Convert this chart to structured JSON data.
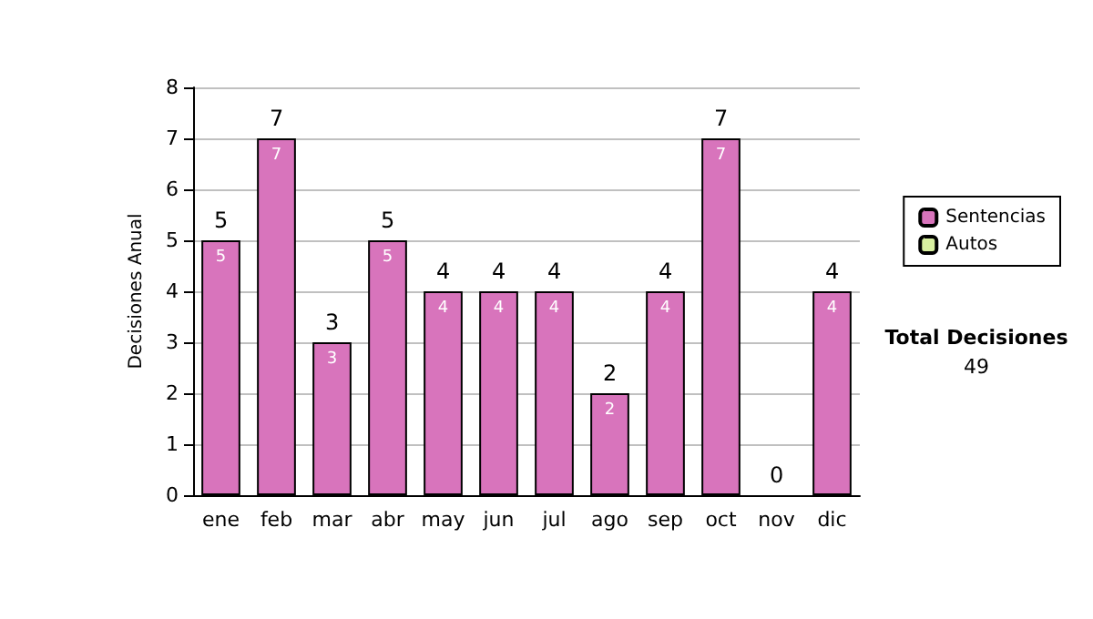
{
  "chart_data": {
    "type": "bar",
    "ylabel": "Decisiones Anual",
    "categories": [
      "ene",
      "feb",
      "mar",
      "abr",
      "may",
      "jun",
      "jul",
      "ago",
      "sep",
      "oct",
      "nov",
      "dic"
    ],
    "stacked": true,
    "series": [
      {
        "name": "Sentencias",
        "color": "#d874bc",
        "values": [
          5,
          7,
          3,
          5,
          4,
          4,
          4,
          2,
          4,
          7,
          0,
          4
        ],
        "value_labels": [
          "5",
          "7",
          "3",
          "5",
          "4",
          "4",
          "4",
          "2",
          "4",
          "7",
          null,
          "4"
        ]
      },
      {
        "name": "Autos",
        "color": "#d8f0a0",
        "values": [
          0,
          0,
          0,
          0,
          0,
          0,
          0,
          0,
          0,
          0,
          0,
          0
        ]
      }
    ],
    "totals": [
      "5",
      "7",
      "3",
      "5",
      "4",
      "4",
      "4",
      "2",
      "4",
      "7",
      "0",
      "4"
    ],
    "ylim": [
      0,
      8
    ],
    "yticks": [
      0,
      1,
      2,
      3,
      4,
      5,
      6,
      7,
      8
    ],
    "grid": "y",
    "legend": "right",
    "annotations": [
      "Total Decisiones",
      "49"
    ]
  }
}
